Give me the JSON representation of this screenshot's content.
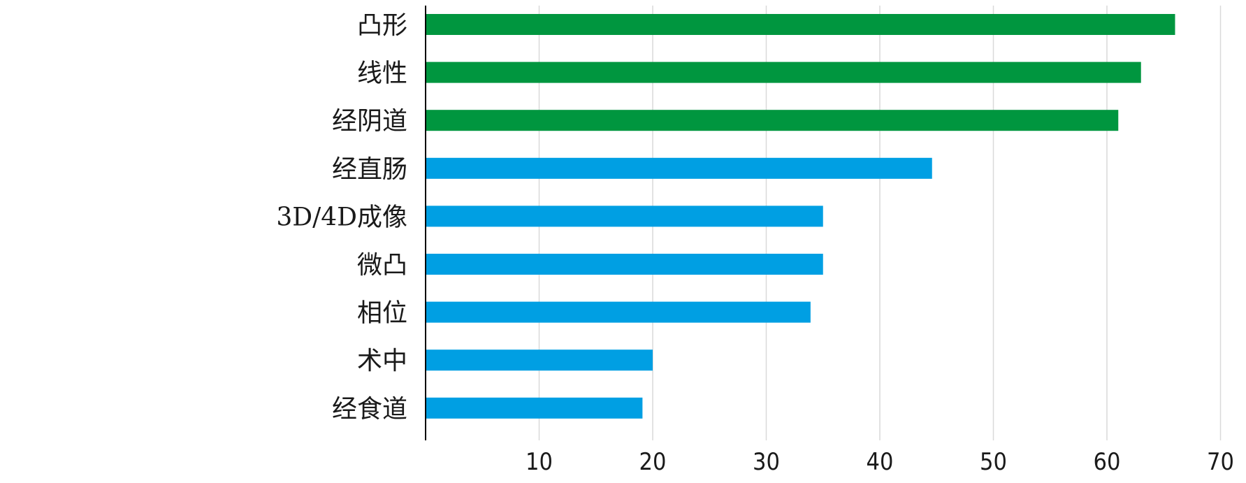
{
  "chart_data": {
    "type": "bar",
    "orientation": "horizontal",
    "categories": [
      "凸形",
      "线性",
      "经阴道",
      "经直肠",
      "3D/4D成像",
      "微凸",
      "相位",
      "术中",
      "经食道"
    ],
    "values": [
      66,
      63,
      61,
      44.6,
      35,
      35,
      33.9,
      20,
      19.1
    ],
    "bar_colors": [
      "#00963f",
      "#00963f",
      "#00963f",
      "#009fe3",
      "#009fe3",
      "#009fe3",
      "#009fe3",
      "#009fe3",
      "#009fe3"
    ],
    "x_ticks": [
      10,
      20,
      30,
      40,
      50,
      60,
      70
    ],
    "xlim": [
      0,
      70
    ],
    "grid": true,
    "legend": "none",
    "title": "",
    "xlabel": "",
    "ylabel": ""
  }
}
